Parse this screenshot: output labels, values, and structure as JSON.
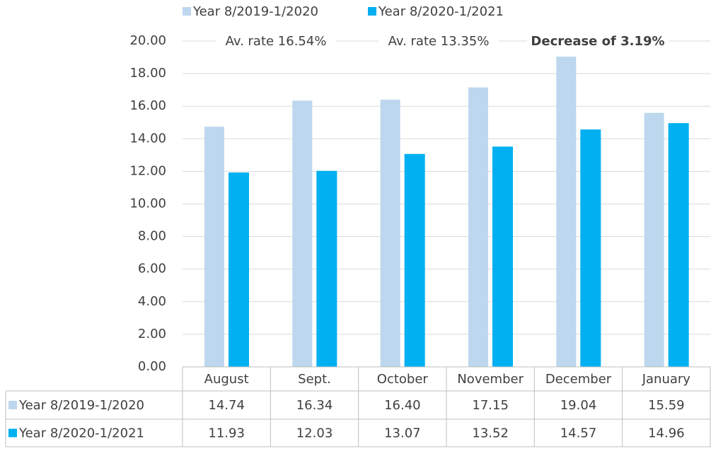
{
  "chart_data": {
    "type": "bar",
    "annotations": [
      "Av. rate 16.54%",
      "Av. rate 13.35%",
      "Decrease of 3.19%"
    ],
    "categories": [
      "August",
      "Sept.",
      "October",
      "November",
      "December",
      "January"
    ],
    "series": [
      {
        "name": "Year 8/2019-1/2020",
        "color": "#bdd7ee",
        "values": [
          14.74,
          16.34,
          16.4,
          17.15,
          19.04,
          15.59
        ],
        "value_labels": [
          "14.74",
          "16.34",
          "16.40",
          "17.15",
          "19.04",
          "15.59"
        ]
      },
      {
        "name": "Year 8/2020-1/2021",
        "color": "#00b0f0",
        "values": [
          11.93,
          12.03,
          13.07,
          13.52,
          14.57,
          14.96
        ],
        "value_labels": [
          "11.93",
          "12.03",
          "13.07",
          "13.52",
          "14.57",
          "14.96"
        ]
      }
    ],
    "ylim": [
      0,
      20
    ],
    "yticks": [
      {
        "value": 0,
        "label": "0.00"
      },
      {
        "value": 2,
        "label": "2.00"
      },
      {
        "value": 4,
        "label": "4.00"
      },
      {
        "value": 6,
        "label": "6.00"
      },
      {
        "value": 8,
        "label": "8.00"
      },
      {
        "value": 10,
        "label": "10.00"
      },
      {
        "value": 12,
        "label": "12.00"
      },
      {
        "value": 14,
        "label": "14.00"
      },
      {
        "value": 16,
        "label": "16.00"
      },
      {
        "value": 18,
        "label": "18.00"
      },
      {
        "value": 20,
        "label": "20.00"
      }
    ],
    "grid": true,
    "legend": "top",
    "data_table": true
  }
}
